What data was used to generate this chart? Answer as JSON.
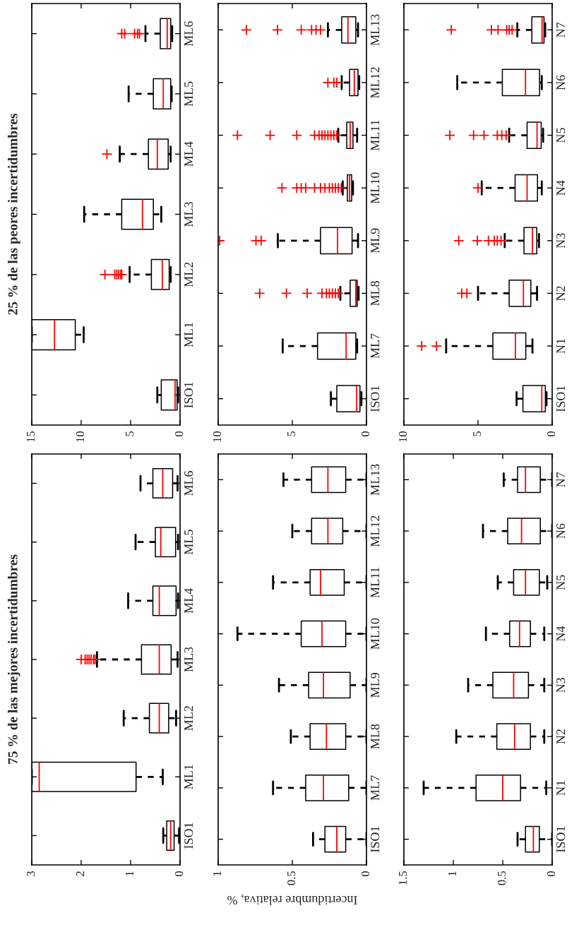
{
  "chart_data": [
    {
      "type": "box",
      "title": "25 % de las peores incertidumbres",
      "orientation": "horizontal",
      "categories": [
        "ML6",
        "ML5",
        "ML4",
        "ML3",
        "ML2",
        "ML1",
        "ISO1"
      ],
      "xlim": [
        15,
        0
      ],
      "xticks": [
        0,
        5,
        10,
        15
      ],
      "boxes": [
        {
          "low": 0.8,
          "q1": 0.95,
          "median": 1.3,
          "q3": 2.0,
          "high": 3.5,
          "outliers": [
            4.1,
            4.3,
            4.6,
            5.6,
            5.9
          ]
        },
        {
          "low": 0.85,
          "q1": 0.95,
          "median": 1.7,
          "q3": 2.7,
          "high": 5.2
        },
        {
          "low": 0.95,
          "q1": 1.2,
          "median": 2.3,
          "q3": 3.2,
          "high": 6.1,
          "outliers": [
            7.4
          ]
        },
        {
          "low": 1.9,
          "q1": 2.7,
          "median": 3.8,
          "q3": 5.9,
          "high": 9.7
        },
        {
          "low": 0.95,
          "q1": 1.1,
          "median": 1.8,
          "q3": 2.9,
          "high": 5.1,
          "outliers": [
            5.9,
            6.0,
            6.2,
            6.4,
            6.6,
            7.6
          ]
        },
        {
          "low": 9.75,
          "q1": 10.6,
          "median": 12.7,
          "q3": 15,
          "high": 15
        },
        {
          "low": 0.2,
          "q1": 0.3,
          "median": 0.5,
          "q3": 1.9,
          "high": 2.3
        }
      ]
    },
    {
      "type": "box",
      "orientation": "horizontal",
      "categories": [
        "ML13",
        "ML12",
        "ML11",
        "ML10",
        "ML9",
        "ML8",
        "ML7",
        "ISO1"
      ],
      "xlim": [
        10,
        0
      ],
      "xticks": [
        0,
        5,
        10
      ],
      "boxes": [
        {
          "low": 0.57,
          "q1": 0.72,
          "median": 1.25,
          "q3": 1.67,
          "high": 2.6,
          "outliers": [
            3.1,
            3.4,
            3.7,
            4.4,
            6.0,
            8.1
          ]
        },
        {
          "low": 0.49,
          "q1": 0.57,
          "median": 0.82,
          "q3": 1.14,
          "high": 1.67,
          "outliers": [
            2.0,
            2.2,
            2.6
          ]
        },
        {
          "low": 0.63,
          "q1": 0.91,
          "median": 1.1,
          "q3": 1.33,
          "high": 1.9,
          "outliers": [
            2.0,
            2.2,
            2.4,
            2.6,
            2.8,
            3.0,
            3.2,
            3.5,
            4.7,
            6.5,
            8.7
          ]
        },
        {
          "low": 0.91,
          "q1": 1.0,
          "median": 1.14,
          "q3": 1.29,
          "high": 1.6,
          "outliers": [
            1.7,
            1.9,
            2.1,
            2.3,
            2.5,
            2.8,
            3.1,
            3.5,
            4.1,
            4.4,
            4.7,
            5.7
          ]
        },
        {
          "low": 0.57,
          "q1": 0.97,
          "median": 1.95,
          "q3": 3.1,
          "high": 5.98,
          "outliers": [
            7.1,
            7.45,
            9.9
          ]
        },
        {
          "low": 0.53,
          "q1": 0.63,
          "median": 0.72,
          "q3": 1.1,
          "high": 1.76,
          "outliers": [
            1.9,
            2.1,
            2.3,
            2.5,
            2.7,
            3.0,
            4.0,
            5.4,
            7.2
          ]
        },
        {
          "low": 0.63,
          "q1": 0.72,
          "median": 1.37,
          "q3": 3.3,
          "high": 5.65
        },
        {
          "low": 0.34,
          "q1": 0.44,
          "median": 0.66,
          "q3": 2.0,
          "high": 2.4
        }
      ]
    },
    {
      "type": "box",
      "orientation": "horizontal",
      "categories": [
        "N7",
        "N6",
        "N5",
        "N4",
        "N3",
        "N2",
        "N1",
        "ISO1"
      ],
      "xlim": [
        10,
        0
      ],
      "xticks": [
        0,
        5,
        10
      ],
      "boxes": [
        {
          "low": 0.47,
          "q1": 0.55,
          "median": 0.68,
          "q3": 1.37,
          "high": 2.35,
          "outliers": [
            2.7,
            2.9,
            3.07,
            3.65,
            4.1,
            6.8
          ]
        },
        {
          "low": 0.7,
          "q1": 0.85,
          "median": 1.8,
          "q3": 3.36,
          "high": 6.4
        },
        {
          "low": 0.61,
          "q1": 0.74,
          "median": 1.02,
          "q3": 1.69,
          "high": 2.9,
          "outliers": [
            3.1,
            3.4,
            3.7,
            4.6,
            5.3,
            6.9
          ]
        },
        {
          "low": 0.7,
          "q1": 0.99,
          "median": 1.69,
          "q3": 2.5,
          "high": 4.75,
          "outliers": [
            5.0
          ]
        },
        {
          "low": 0.89,
          "q1": 1.04,
          "median": 1.33,
          "q3": 1.9,
          "high": 3.2,
          "outliers": [
            3.45,
            3.7,
            3.9,
            4.3,
            5.05,
            6.3
          ]
        },
        {
          "low": 1.02,
          "q1": 1.44,
          "median": 1.94,
          "q3": 2.9,
          "high": 5.0,
          "outliers": [
            5.75,
            6.1
          ]
        },
        {
          "low": 1.33,
          "q1": 1.78,
          "median": 2.48,
          "q3": 4.0,
          "high": 7.15,
          "outliers": [
            7.8,
            8.8
          ]
        },
        {
          "low": 0.38,
          "q1": 0.46,
          "median": 0.7,
          "q3": 1.97,
          "high": 2.4
        }
      ]
    },
    {
      "type": "box",
      "title": "75 % de las mejores incertidumbres",
      "orientation": "horizontal",
      "categories": [
        "ML6",
        "ML5",
        "ML4",
        "ML3",
        "ML2",
        "ML1",
        "ISO1"
      ],
      "xlim": [
        3,
        0
      ],
      "xticks": [
        0,
        1,
        2,
        3
      ],
      "boxes": [
        {
          "low": 0.05,
          "q1": 0.15,
          "median": 0.35,
          "q3": 0.55,
          "high": 0.8
        },
        {
          "low": 0.04,
          "q1": 0.09,
          "median": 0.39,
          "q3": 0.5,
          "high": 0.9
        },
        {
          "low": 0.04,
          "q1": 0.08,
          "median": 0.42,
          "q3": 0.55,
          "high": 1.05
        },
        {
          "low": 0.05,
          "q1": 0.18,
          "median": 0.42,
          "q3": 0.78,
          "high": 1.68,
          "outliers": [
            1.72,
            1.75,
            1.8,
            1.84,
            1.88,
            1.92,
            2.0
          ]
        },
        {
          "low": 0.08,
          "q1": 0.23,
          "median": 0.42,
          "q3": 0.62,
          "high": 1.14
        },
        {
          "low": 0.35,
          "q1": 0.89,
          "median": 2.85,
          "q3": 3,
          "high": 3
        },
        {
          "low": 0.02,
          "q1": 0.12,
          "median": 0.19,
          "q3": 0.27,
          "high": 0.34
        }
      ]
    },
    {
      "type": "box",
      "xlabel": "Incertidumbre relativa, %",
      "orientation": "horizontal",
      "categories": [
        "ML13",
        "ML12",
        "ML11",
        "ML10",
        "ML9",
        "ML8",
        "ML7",
        "ISO1"
      ],
      "xlim": [
        1,
        0
      ],
      "xticks": [
        0,
        0.5,
        1
      ],
      "boxes": [
        {
          "low": 0.0,
          "q1": 0.14,
          "median": 0.26,
          "q3": 0.37,
          "high": 0.56
        },
        {
          "low": 0.0,
          "q1": 0.16,
          "median": 0.26,
          "q3": 0.37,
          "high": 0.5
        },
        {
          "low": 0.0,
          "q1": 0.15,
          "median": 0.31,
          "q3": 0.38,
          "high": 0.63
        },
        {
          "low": 0.0,
          "q1": 0.14,
          "median": 0.3,
          "q3": 0.44,
          "high": 0.87
        },
        {
          "low": 0.0,
          "q1": 0.11,
          "median": 0.29,
          "q3": 0.39,
          "high": 0.59
        },
        {
          "low": 0.0,
          "q1": 0.14,
          "median": 0.27,
          "q3": 0.38,
          "high": 0.51
        },
        {
          "low": 0.0,
          "q1": 0.12,
          "median": 0.29,
          "q3": 0.41,
          "high": 0.63
        },
        {
          "low": 0.0,
          "q1": 0.14,
          "median": 0.2,
          "q3": 0.28,
          "high": 0.36
        }
      ]
    },
    {
      "type": "box",
      "orientation": "horizontal",
      "categories": [
        "N7",
        "N6",
        "N5",
        "N4",
        "N3",
        "N2",
        "N1",
        "ISO1"
      ],
      "xlim": [
        1.5,
        0
      ],
      "xticks": [
        0,
        0.5,
        1,
        1.5
      ],
      "boxes": [
        {
          "low": 0.0,
          "q1": 0.12,
          "median": 0.27,
          "q3": 0.35,
          "high": 0.49
        },
        {
          "low": 0.0,
          "q1": 0.12,
          "median": 0.31,
          "q3": 0.45,
          "high": 0.7
        },
        {
          "low": 0.05,
          "q1": 0.13,
          "median": 0.27,
          "q3": 0.39,
          "high": 0.55
        },
        {
          "low": 0.08,
          "q1": 0.22,
          "median": 0.33,
          "q3": 0.43,
          "high": 0.67
        },
        {
          "low": 0.08,
          "q1": 0.24,
          "median": 0.39,
          "q3": 0.6,
          "high": 0.85
        },
        {
          "low": 0.08,
          "q1": 0.22,
          "median": 0.38,
          "q3": 0.56,
          "high": 0.97
        },
        {
          "low": 0.06,
          "q1": 0.32,
          "median": 0.5,
          "q3": 0.77,
          "high": 1.3
        },
        {
          "low": 0.0,
          "q1": 0.13,
          "median": 0.19,
          "q3": 0.27,
          "high": 0.35
        }
      ]
    }
  ]
}
